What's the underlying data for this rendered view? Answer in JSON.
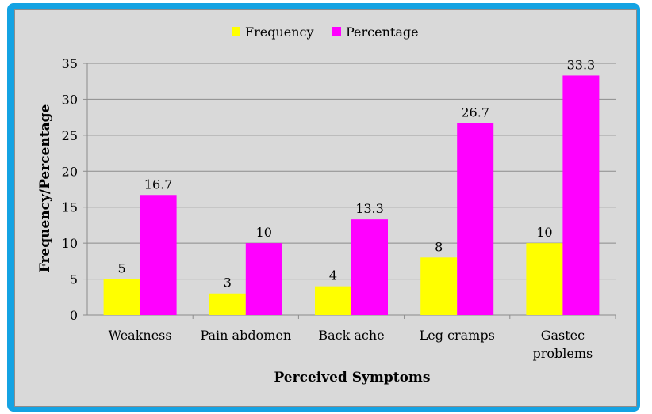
{
  "chart_data": {
    "type": "bar",
    "title": "",
    "xlabel": "Perceived Symptoms",
    "ylabel": "Frequency/Percentage",
    "ylim": [
      0,
      35
    ],
    "yticks": [
      0,
      5,
      10,
      15,
      20,
      25,
      30,
      35
    ],
    "categories": [
      "Weakness",
      "Pain abdomen",
      "Back ache",
      "Leg cramps",
      "Gastec problems"
    ],
    "category_lines": [
      [
        "Weakness"
      ],
      [
        "Pain abdomen"
      ],
      [
        "Back ache"
      ],
      [
        "Leg cramps"
      ],
      [
        "Gastec",
        "problems"
      ]
    ],
    "series": [
      {
        "name": "Frequency",
        "color": "#ffff00",
        "values": [
          5,
          3,
          4,
          8,
          10
        ],
        "labels": [
          "5",
          "3",
          "4",
          "8",
          "10"
        ]
      },
      {
        "name": "Percentage",
        "color": "#ff00ff",
        "values": [
          16.7,
          10,
          13.3,
          26.7,
          33.3
        ],
        "labels": [
          "16.7",
          "10",
          "13.3",
          "26.7",
          "33.3"
        ]
      }
    ],
    "grid": true,
    "legend_position": "top-center"
  }
}
